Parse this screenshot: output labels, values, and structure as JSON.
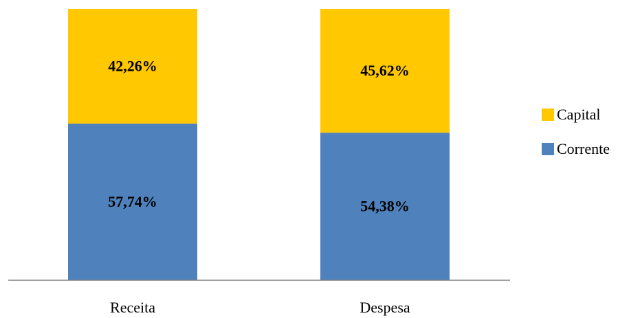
{
  "chart_data": {
    "type": "bar",
    "stacked": true,
    "percent": true,
    "categories": [
      "Receita",
      "Despesa"
    ],
    "series": [
      {
        "name": "Corrente",
        "values": [
          57.74,
          54.38
        ],
        "labels": [
          "57,74%",
          "54,38%"
        ],
        "color": "#4F81BD"
      },
      {
        "name": "Capital",
        "values": [
          42.26,
          45.62
        ],
        "labels": [
          "42,26%",
          "45,62%"
        ],
        "color": "#FFC800"
      }
    ],
    "ylim": [
      0,
      100
    ],
    "grid": false,
    "legend": "right",
    "legend_order": [
      "Capital",
      "Corrente"
    ],
    "axis_color": "#808080"
  }
}
